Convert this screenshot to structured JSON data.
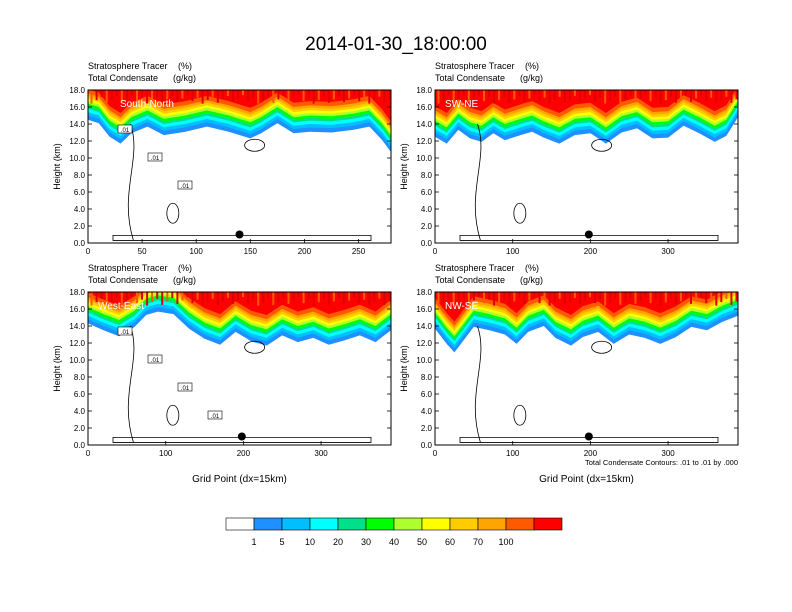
{
  "title": "2014-01-30_18:00:00",
  "chart_data": {
    "type": "heatmap",
    "shared": {
      "left_label_line1": "Stratosphere Tracer",
      "left_label_line2": "Total Condensate",
      "unit_line1": "(%)",
      "unit_line2": "(g/kg)",
      "ylabel": "Height (km)",
      "ylim": [
        0,
        18
      ],
      "yticks": [
        "0.0",
        "2.0",
        "4.0",
        "6.0",
        "8.0",
        "10.0",
        "12.0",
        "14.0",
        "16.0",
        "18.0"
      ]
    },
    "panels": [
      {
        "name": "South-North",
        "xlim": [
          0,
          280
        ],
        "xticks": [
          "0",
          "50",
          "100",
          "150",
          "200",
          "250"
        ],
        "xlabel": "",
        "marker_x": 140,
        "contour_labels": [
          ".01",
          ".01",
          ".01"
        ],
        "band": [
          [
            0,
            15.0
          ],
          [
            10,
            14.6
          ],
          [
            20,
            13.0
          ],
          [
            30,
            12.2
          ],
          [
            40,
            13.4
          ],
          [
            55,
            14.2
          ],
          [
            70,
            13.2
          ],
          [
            90,
            13.6
          ],
          [
            110,
            14.2
          ],
          [
            130,
            13.6
          ],
          [
            150,
            12.8
          ],
          [
            160,
            13.4
          ],
          [
            175,
            14.6
          ],
          [
            190,
            13.4
          ],
          [
            205,
            13.6
          ],
          [
            225,
            13.5
          ],
          [
            245,
            13.8
          ],
          [
            260,
            14.2
          ],
          [
            272,
            12.6
          ],
          [
            280,
            11.2
          ]
        ]
      },
      {
        "name": "SW-NE",
        "xlim": [
          0,
          390
        ],
        "xticks": [
          "0",
          "100",
          "200",
          "300"
        ],
        "xlabel": "",
        "marker_x": 198,
        "contour_labels": [],
        "band": [
          [
            0,
            13.0
          ],
          [
            15,
            12.2
          ],
          [
            30,
            13.8
          ],
          [
            45,
            12.8
          ],
          [
            60,
            12.4
          ],
          [
            75,
            13.4
          ],
          [
            90,
            12.6
          ],
          [
            110,
            13.2
          ],
          [
            125,
            13.6
          ],
          [
            140,
            12.9
          ],
          [
            160,
            12.2
          ],
          [
            180,
            13.2
          ],
          [
            200,
            13.4
          ],
          [
            220,
            12.2
          ],
          [
            240,
            13.5
          ],
          [
            260,
            14.0
          ],
          [
            280,
            12.8
          ],
          [
            300,
            12.9
          ],
          [
            320,
            14.3
          ],
          [
            340,
            13.4
          ],
          [
            360,
            12.4
          ],
          [
            375,
            13.1
          ],
          [
            390,
            15.3
          ]
        ]
      },
      {
        "name": "West-East",
        "xlim": [
          0,
          390
        ],
        "xticks": [
          "0",
          "100",
          "200",
          "300"
        ],
        "xlabel": "Grid Point (dx=15km)",
        "marker_x": 198,
        "contour_labels": [
          ".01",
          ".01",
          ".01",
          ".01"
        ],
        "band": [
          [
            0,
            14.8
          ],
          [
            20,
            14.0
          ],
          [
            40,
            13.3
          ],
          [
            60,
            14.4
          ],
          [
            75,
            15.8
          ],
          [
            90,
            16.2
          ],
          [
            110,
            15.9
          ],
          [
            130,
            14.2
          ],
          [
            150,
            13.0
          ],
          [
            170,
            12.3
          ],
          [
            190,
            13.8
          ],
          [
            210,
            12.7
          ],
          [
            230,
            12.2
          ],
          [
            250,
            13.4
          ],
          [
            270,
            12.6
          ],
          [
            290,
            13.1
          ],
          [
            310,
            12.3
          ],
          [
            330,
            12.8
          ],
          [
            350,
            13.4
          ],
          [
            370,
            12.6
          ],
          [
            390,
            14.0
          ]
        ]
      },
      {
        "name": "NW-SE",
        "xlim": [
          0,
          390
        ],
        "xticks": [
          "0",
          "100",
          "200",
          "300"
        ],
        "xlabel": "Grid Point (dx=15km)",
        "marker_x": 198,
        "contour_labels": [],
        "note": "Total Condensate Contours: .01 to .01 by .000",
        "band": [
          [
            0,
            14.2
          ],
          [
            15,
            12.4
          ],
          [
            25,
            11.4
          ],
          [
            35,
            12.6
          ],
          [
            50,
            14.4
          ],
          [
            70,
            14.0
          ],
          [
            90,
            13.5
          ],
          [
            105,
            12.4
          ],
          [
            120,
            13.8
          ],
          [
            140,
            14.5
          ],
          [
            155,
            13.1
          ],
          [
            175,
            12.2
          ],
          [
            190,
            13.2
          ],
          [
            210,
            13.8
          ],
          [
            230,
            12.4
          ],
          [
            250,
            13.5
          ],
          [
            270,
            13.1
          ],
          [
            290,
            12.4
          ],
          [
            310,
            13.2
          ],
          [
            330,
            14.4
          ],
          [
            350,
            14.0
          ],
          [
            370,
            15.0
          ],
          [
            390,
            15.7
          ]
        ]
      }
    ],
    "colorbar": {
      "levels": [
        "1",
        "5",
        "10",
        "20",
        "30",
        "40",
        "50",
        "60",
        "70",
        "100"
      ],
      "colors": [
        "#ffffff",
        "#1e90ff",
        "#00bfff",
        "#00ffff",
        "#00e08a",
        "#00ff00",
        "#adff2f",
        "#ffff00",
        "#ffcc00",
        "#ffa500",
        "#ff5a00",
        "#ff0000"
      ]
    }
  }
}
